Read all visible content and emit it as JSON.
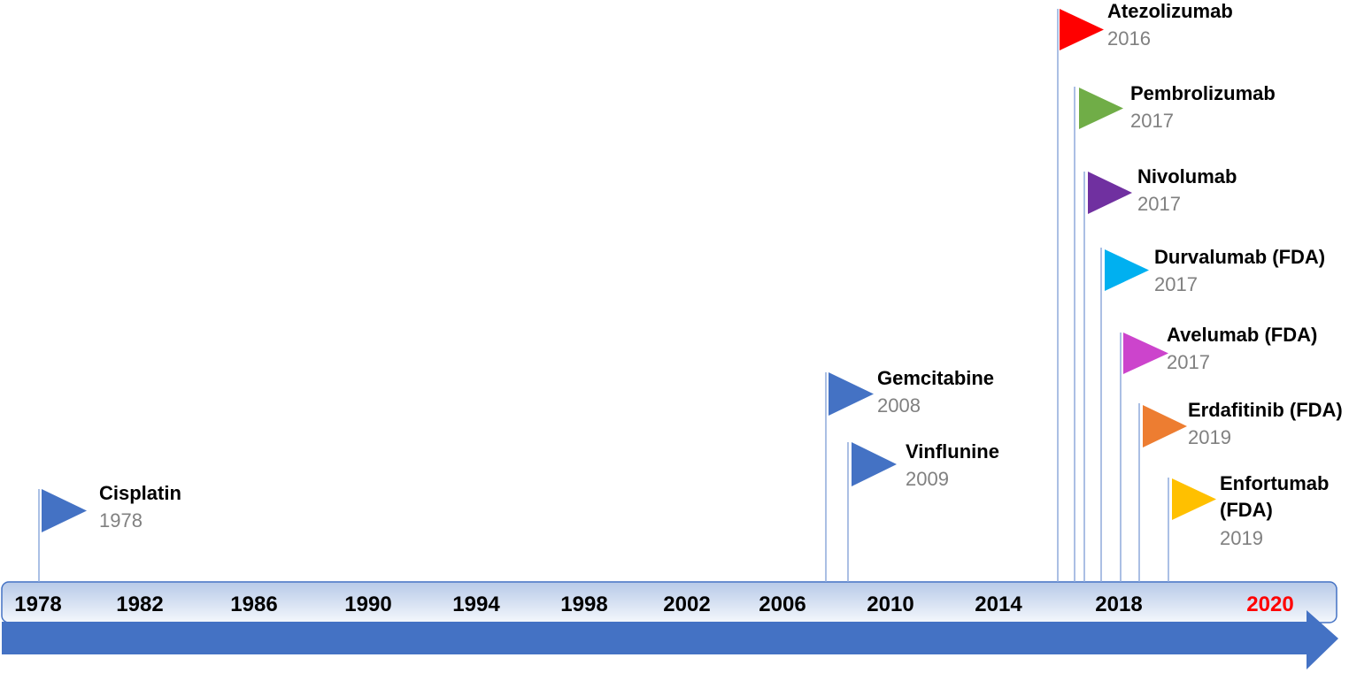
{
  "axis": {
    "labels": [
      "1978",
      "1982",
      "1986",
      "1990",
      "1994",
      "1998",
      "2002",
      "2006",
      "2010",
      "2014",
      "2018",
      "2020"
    ]
  },
  "events": [
    {
      "name": "Cisplatin",
      "year": "1978"
    },
    {
      "name": "Gemcitabine",
      "year": "2008"
    },
    {
      "name": "Vinflunine",
      "year": "2009"
    },
    {
      "name": "Atezolizumab",
      "year": "2016"
    },
    {
      "name": "Pembrolizumab",
      "year": "2017"
    },
    {
      "name": "Nivolumab",
      "year": "2017"
    },
    {
      "name": "Durvalumab (FDA)",
      "year": "2017"
    },
    {
      "name": "Avelumab (FDA)",
      "year": "2017"
    },
    {
      "name": "Erdafitinib (FDA)",
      "year": "2019"
    },
    {
      "name": "Enfortumab (FDA)",
      "year": "2019"
    }
  ]
}
